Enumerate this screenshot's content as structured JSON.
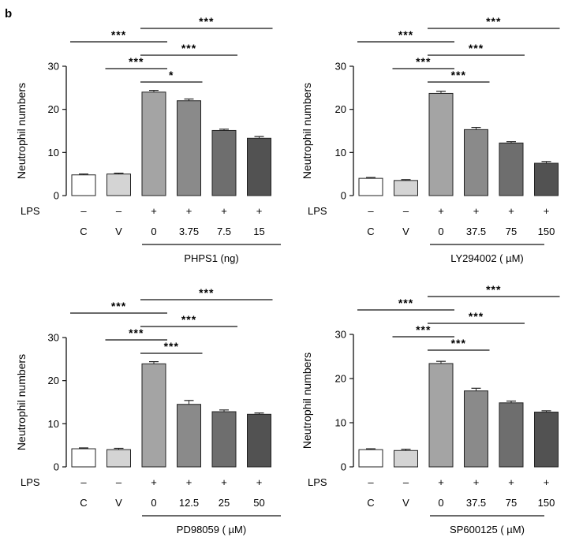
{
  "figure": {
    "panel_label": "b"
  },
  "chart_data": [
    {
      "type": "bar",
      "ylabel": "Neutrophil numbers",
      "ylim": [
        0,
        30
      ],
      "yticks": [
        "0",
        "10",
        "20",
        "30"
      ],
      "row_label": "LPS",
      "lps": [
        "–",
        "–",
        "+",
        "+",
        "+",
        "+"
      ],
      "categories": [
        "C",
        "V",
        "0",
        "3.75",
        "7.5",
        "15"
      ],
      "values": [
        4.8,
        5.0,
        24.0,
        22.0,
        15.1,
        13.3
      ],
      "errors": [
        0.2,
        0.2,
        0.4,
        0.4,
        0.3,
        0.4
      ],
      "colors": [
        "#ffffff",
        "#d4d4d4",
        "#a4a4a4",
        "#8a8a8a",
        "#6e6e6e",
        "#525252"
      ],
      "group_label": "PHPS1 (ng)",
      "comparisons": [
        {
          "from": 0,
          "to": 2,
          "label": "***"
        },
        {
          "from": 1,
          "to": 2,
          "label": "***"
        },
        {
          "from": 2,
          "to": 5,
          "label": "***"
        },
        {
          "from": 2,
          "to": 4,
          "label": "***"
        },
        {
          "from": 2,
          "to": 3,
          "label": "*"
        }
      ]
    },
    {
      "type": "bar",
      "ylabel": "Neutrophil numbers",
      "ylim": [
        0,
        30
      ],
      "yticks": [
        "0",
        "10",
        "20",
        "30"
      ],
      "row_label": "LPS",
      "lps": [
        "–",
        "–",
        "+",
        "+",
        "+",
        "+"
      ],
      "categories": [
        "C",
        "V",
        "0",
        "37.5",
        "75",
        "150"
      ],
      "values": [
        4.0,
        3.5,
        23.7,
        15.3,
        12.2,
        7.5
      ],
      "errors": [
        0.2,
        0.2,
        0.5,
        0.5,
        0.3,
        0.4
      ],
      "colors": [
        "#ffffff",
        "#d4d4d4",
        "#a4a4a4",
        "#8a8a8a",
        "#6e6e6e",
        "#525252"
      ],
      "group_label": "LY294002 ( µM)",
      "comparisons": [
        {
          "from": 0,
          "to": 2,
          "label": "***"
        },
        {
          "from": 1,
          "to": 2,
          "label": "***"
        },
        {
          "from": 2,
          "to": 5,
          "label": "***"
        },
        {
          "from": 2,
          "to": 4,
          "label": "***"
        },
        {
          "from": 2,
          "to": 3,
          "label": "***"
        }
      ]
    },
    {
      "type": "bar",
      "ylabel": "Neutrophil numbers",
      "ylim": [
        0,
        30
      ],
      "yticks": [
        "0",
        "10",
        "20",
        "30"
      ],
      "row_label": "LPS",
      "lps": [
        "–",
        "–",
        "+",
        "+",
        "+",
        "+"
      ],
      "categories": [
        "C",
        "V",
        "0",
        "12.5",
        "25",
        "50"
      ],
      "values": [
        4.2,
        4.0,
        23.9,
        14.5,
        12.8,
        12.2
      ],
      "errors": [
        0.2,
        0.3,
        0.5,
        0.9,
        0.4,
        0.3
      ],
      "colors": [
        "#ffffff",
        "#d4d4d4",
        "#a4a4a4",
        "#8a8a8a",
        "#6e6e6e",
        "#525252"
      ],
      "group_label": "PD98059 ( µM)",
      "comparisons": [
        {
          "from": 0,
          "to": 2,
          "label": "***"
        },
        {
          "from": 1,
          "to": 2,
          "label": "***"
        },
        {
          "from": 2,
          "to": 5,
          "label": "***"
        },
        {
          "from": 2,
          "to": 4,
          "label": "***"
        },
        {
          "from": 2,
          "to": 3,
          "label": "***"
        }
      ]
    },
    {
      "type": "bar",
      "ylabel": "Neutrophil numbers",
      "ylim": [
        0,
        30
      ],
      "yticks": [
        "0",
        "10",
        "20",
        "30"
      ],
      "row_label": "LPS",
      "lps": [
        "–",
        "–",
        "+",
        "+",
        "+",
        "+"
      ],
      "categories": [
        "C",
        "V",
        "0",
        "37.5",
        "75",
        "150"
      ],
      "values": [
        3.9,
        3.7,
        23.4,
        17.2,
        14.5,
        12.4
      ],
      "errors": [
        0.2,
        0.3,
        0.5,
        0.6,
        0.4,
        0.3
      ],
      "colors": [
        "#ffffff",
        "#d4d4d4",
        "#a4a4a4",
        "#8a8a8a",
        "#6e6e6e",
        "#525252"
      ],
      "group_label": "SP600125 ( µM)",
      "comparisons": [
        {
          "from": 0,
          "to": 2,
          "label": "***"
        },
        {
          "from": 1,
          "to": 2,
          "label": "***"
        },
        {
          "from": 2,
          "to": 5,
          "label": "***"
        },
        {
          "from": 2,
          "to": 4,
          "label": "***"
        },
        {
          "from": 2,
          "to": 3,
          "label": "***"
        }
      ]
    }
  ]
}
